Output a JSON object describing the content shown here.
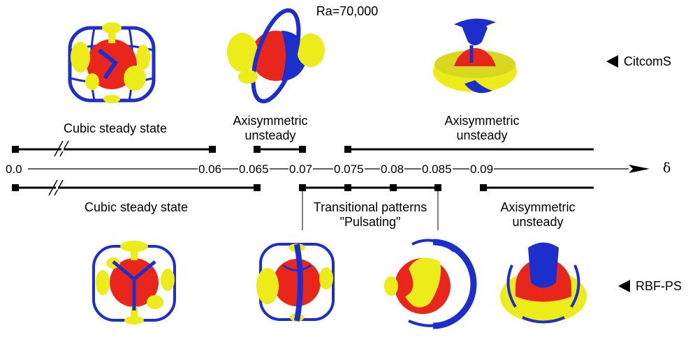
{
  "title": "Ra=70,000",
  "axis": {
    "symbol": "δ",
    "ticks": [
      "0.0",
      "0.06",
      "0.065",
      "0.07",
      "0.075",
      "0.08",
      "0.085",
      "0.09"
    ]
  },
  "citcoms": {
    "label": "CitcomS",
    "regimes": [
      "Cubic steady state",
      "Axisymmetric\nunsteady",
      "Axisymmetric\nunsteady"
    ]
  },
  "rbfps": {
    "label": "RBF-PS",
    "regimes": [
      "Cubic steady state",
      "Transitional patterns\n\"Pulsating\"",
      "Axisymmetric\nunsteady"
    ]
  },
  "colors": {
    "core": "#e8261b",
    "plume": "#ecec1a",
    "downwelling": "#1c2fcc",
    "line": "#000000"
  }
}
